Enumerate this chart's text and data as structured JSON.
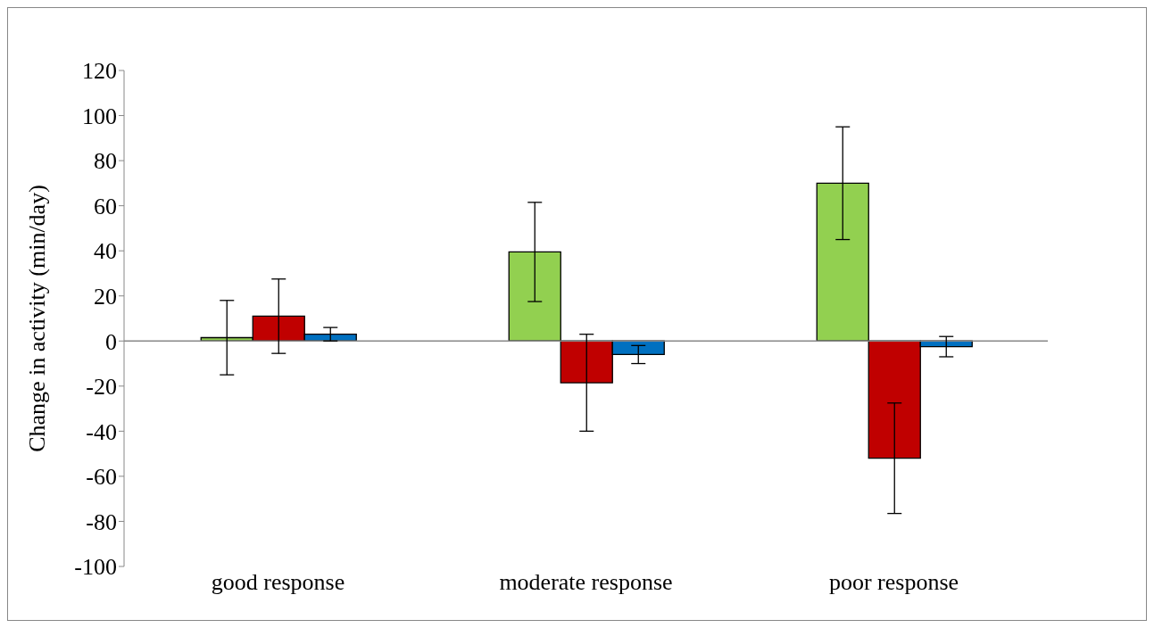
{
  "chart_data": {
    "type": "bar",
    "ylabel": "Change in activity (min/day)",
    "categories": [
      "good response",
      "moderate response",
      "poor response"
    ],
    "series": [
      {
        "color": "#92d050",
        "values": [
          1.5,
          39.5,
          70
        ],
        "errors": [
          16.5,
          22,
          25
        ]
      },
      {
        "color": "#c00000",
        "values": [
          11,
          -18.5,
          -52
        ],
        "errors": [
          16.5,
          21.5,
          24.5
        ]
      },
      {
        "color": "#0070c0",
        "values": [
          3,
          -6,
          -2.5
        ],
        "errors": [
          3,
          4,
          4.5
        ]
      }
    ],
    "ylim": [
      -100,
      120
    ],
    "yticks": [
      -100,
      -80,
      -60,
      -40,
      -20,
      0,
      20,
      40,
      60,
      80,
      100,
      120
    ],
    "legend": false
  }
}
